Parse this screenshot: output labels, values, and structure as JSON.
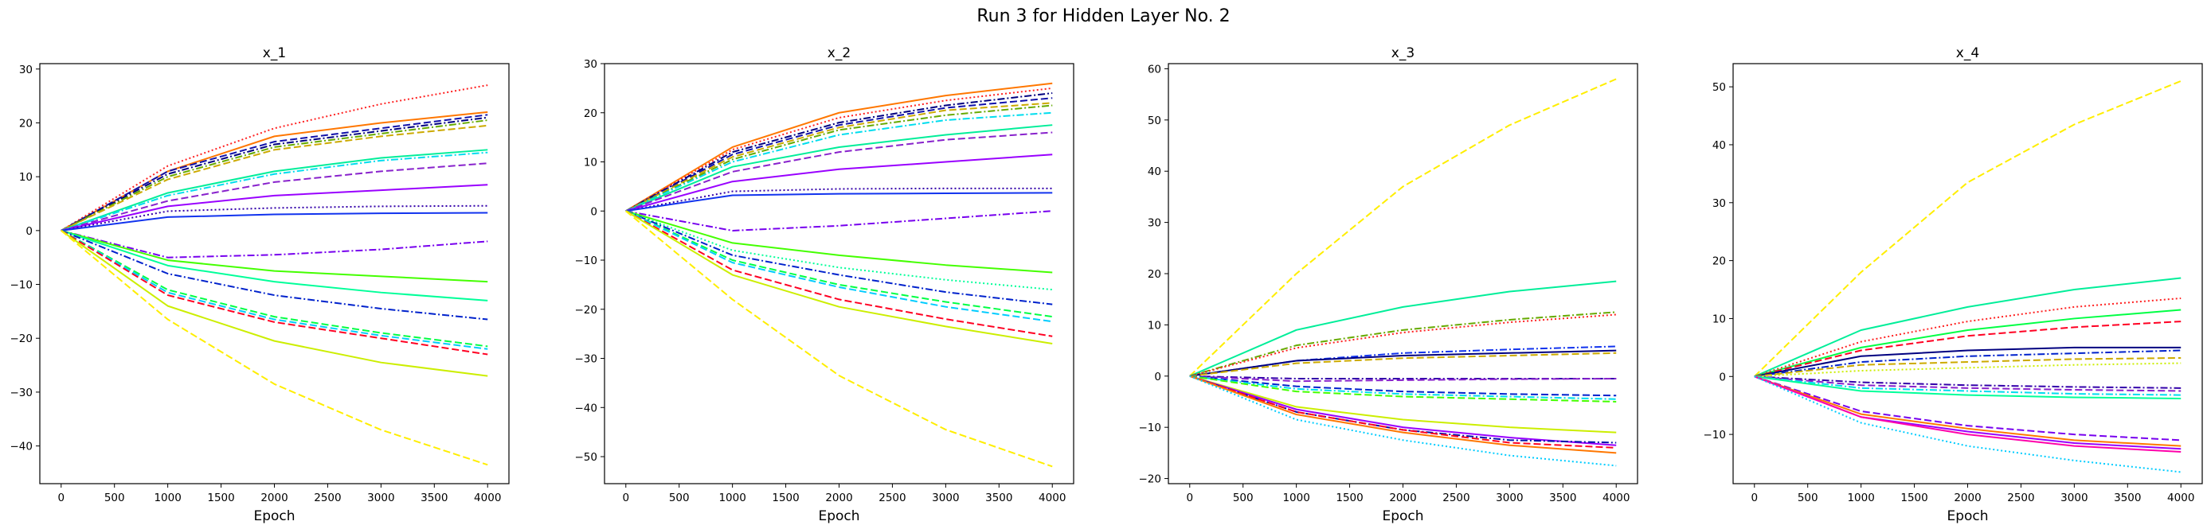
{
  "figure": {
    "title": "Run 3 for Hidden Layer No. 2"
  },
  "chart_data": [
    {
      "type": "line",
      "title": "x_1",
      "xlabel": "Epoch",
      "ylabel": "",
      "x": [
        0,
        1000,
        2000,
        3000,
        4000
      ],
      "xlim": [
        -200,
        4200
      ],
      "ylim": [
        -47,
        31
      ],
      "xticks": [
        0,
        500,
        1000,
        1500,
        2000,
        2500,
        3000,
        3500,
        4000
      ],
      "yticks": [
        -40,
        -30,
        -20,
        -10,
        0,
        10,
        20,
        30
      ],
      "series": [
        {
          "color": "#ff2222",
          "dash": "dotted",
          "values": [
            0,
            12,
            19,
            23.5,
            27
          ]
        },
        {
          "color": "#ff7700",
          "dash": "solid",
          "values": [
            0,
            11,
            17.5,
            20,
            22
          ]
        },
        {
          "color": "#1111aa",
          "dash": "dashed",
          "values": [
            0,
            11,
            16.5,
            19,
            21.5
          ]
        },
        {
          "color": "#000080",
          "dash": "dashdot",
          "values": [
            0,
            10.5,
            16,
            18.5,
            21
          ]
        },
        {
          "color": "#66aa00",
          "dash": "dashdot",
          "values": [
            0,
            10,
            15.5,
            18,
            20.5
          ]
        },
        {
          "color": "#ccaa00",
          "dash": "dashed",
          "values": [
            0,
            9.5,
            15,
            17.5,
            19.5
          ]
        },
        {
          "color": "#00ee99",
          "dash": "solid",
          "values": [
            0,
            7,
            11,
            13.5,
            15
          ]
        },
        {
          "color": "#00ddee",
          "dash": "dashdot",
          "values": [
            0,
            6.5,
            10.5,
            13,
            14.5
          ]
        },
        {
          "color": "#8822cc",
          "dash": "dashed",
          "values": [
            0,
            5.5,
            9,
            11,
            12.5
          ]
        },
        {
          "color": "#9900ff",
          "dash": "solid",
          "values": [
            0,
            4.5,
            6.5,
            7.5,
            8.5
          ]
        },
        {
          "color": "#3300aa",
          "dash": "dotted",
          "values": [
            0,
            3.6,
            4.2,
            4.5,
            4.6
          ]
        },
        {
          "color": "#1133ee",
          "dash": "solid",
          "values": [
            0,
            2.5,
            3,
            3.2,
            3.3
          ]
        },
        {
          "color": "#7700ee",
          "dash": "dashdot",
          "values": [
            0,
            -5,
            -4.5,
            -3.5,
            -2
          ]
        },
        {
          "color": "#44ff00",
          "dash": "solid",
          "values": [
            0,
            -5.5,
            -7.5,
            -8.5,
            -9.5
          ]
        },
        {
          "color": "#00ff99",
          "dash": "solid",
          "values": [
            0,
            -6.5,
            -9.5,
            -11.5,
            -13
          ]
        },
        {
          "color": "#0022cc",
          "dash": "dashdot",
          "values": [
            0,
            -8,
            -12,
            -14.5,
            -16.5
          ]
        },
        {
          "color": "#00ff44",
          "dash": "dashed",
          "values": [
            0,
            -11,
            -16,
            -19,
            -21.5
          ]
        },
        {
          "color": "#00ccff",
          "dash": "dashed",
          "values": [
            0,
            -11.5,
            -16.5,
            -19.5,
            -22
          ]
        },
        {
          "color": "#ff0022",
          "dash": "dashed",
          "values": [
            0,
            -12,
            -17,
            -20,
            -23
          ]
        },
        {
          "color": "#ccee00",
          "dash": "solid",
          "values": [
            0,
            -14,
            -20.5,
            -24.5,
            -27
          ]
        },
        {
          "color": "#ffee00",
          "dash": "dashed",
          "values": [
            0,
            -16.5,
            -28.5,
            -37,
            -43.5
          ]
        }
      ]
    },
    {
      "type": "line",
      "title": "x_2",
      "xlabel": "Epoch",
      "ylabel": "",
      "x": [
        0,
        1000,
        2000,
        3000,
        4000
      ],
      "xlim": [
        -200,
        4200
      ],
      "ylim": [
        -55.5,
        30
      ],
      "xticks": [
        0,
        500,
        1000,
        1500,
        2000,
        2500,
        3000,
        3500,
        4000
      ],
      "yticks": [
        -50,
        -40,
        -30,
        -20,
        -10,
        0,
        10,
        20,
        30
      ],
      "series": [
        {
          "color": "#ff7700",
          "dash": "solid",
          "values": [
            0,
            13,
            20,
            23.5,
            26
          ]
        },
        {
          "color": "#ff2222",
          "dash": "dotted",
          "values": [
            0,
            12.5,
            19,
            22.5,
            25
          ]
        },
        {
          "color": "#000080",
          "dash": "dashdot",
          "values": [
            0,
            12,
            18,
            21.5,
            24
          ]
        },
        {
          "color": "#1111aa",
          "dash": "dashed",
          "values": [
            0,
            11.5,
            17.5,
            21,
            23
          ]
        },
        {
          "color": "#ccaa00",
          "dash": "dashed",
          "values": [
            0,
            11,
            17,
            20.5,
            22
          ]
        },
        {
          "color": "#66aa00",
          "dash": "dashdot",
          "values": [
            0,
            10.5,
            16.5,
            19.5,
            21.5
          ]
        },
        {
          "color": "#00ddee",
          "dash": "dashdot",
          "values": [
            0,
            10,
            15.5,
            18.5,
            20
          ]
        },
        {
          "color": "#00ee99",
          "dash": "solid",
          "values": [
            0,
            9,
            13,
            15.5,
            17.5
          ]
        },
        {
          "color": "#8822cc",
          "dash": "dashed",
          "values": [
            0,
            8,
            12,
            14.5,
            16
          ]
        },
        {
          "color": "#9900ff",
          "dash": "solid",
          "values": [
            0,
            6,
            8.5,
            10,
            11.5
          ]
        },
        {
          "color": "#3300aa",
          "dash": "dotted",
          "values": [
            0,
            4,
            4.5,
            4.6,
            4.6
          ]
        },
        {
          "color": "#1133ee",
          "dash": "solid",
          "values": [
            0,
            3.2,
            3.5,
            3.6,
            3.7
          ]
        },
        {
          "color": "#7700ee",
          "dash": "dashdot",
          "values": [
            0,
            -4,
            -3,
            -1.5,
            0
          ]
        },
        {
          "color": "#44ff00",
          "dash": "solid",
          "values": [
            0,
            -6.5,
            -9,
            -11,
            -12.5
          ]
        },
        {
          "color": "#00ff99",
          "dash": "dotted",
          "values": [
            0,
            -8,
            -11.5,
            -14,
            -16
          ]
        },
        {
          "color": "#0022cc",
          "dash": "dashdot",
          "values": [
            0,
            -9,
            -13,
            -16.5,
            -19
          ]
        },
        {
          "color": "#00ff44",
          "dash": "dashed",
          "values": [
            0,
            -10,
            -15,
            -18.5,
            -21.5
          ]
        },
        {
          "color": "#00ccff",
          "dash": "dashed",
          "values": [
            0,
            -10.5,
            -15.5,
            -19.5,
            -22.5
          ]
        },
        {
          "color": "#ff0022",
          "dash": "dashed",
          "values": [
            0,
            -12,
            -18,
            -22,
            -25.5
          ]
        },
        {
          "color": "#ccee00",
          "dash": "solid",
          "values": [
            0,
            -13,
            -19.5,
            -23.5,
            -27
          ]
        },
        {
          "color": "#ffee00",
          "dash": "dashed",
          "values": [
            0,
            -18,
            -33.5,
            -44.5,
            -52
          ]
        }
      ]
    },
    {
      "type": "line",
      "title": "x_3",
      "xlabel": "Epoch",
      "ylabel": "",
      "x": [
        0,
        1000,
        2000,
        3000,
        4000
      ],
      "xlim": [
        -200,
        4200
      ],
      "ylim": [
        -21,
        61
      ],
      "xticks": [
        0,
        500,
        1000,
        1500,
        2000,
        2500,
        3000,
        3500,
        4000
      ],
      "yticks": [
        -20,
        -10,
        0,
        10,
        20,
        30,
        40,
        50,
        60
      ],
      "series": [
        {
          "color": "#ffee00",
          "dash": "dashed",
          "values": [
            0,
            20,
            37,
            49,
            58
          ]
        },
        {
          "color": "#00ee99",
          "dash": "solid",
          "values": [
            0,
            9,
            13.5,
            16.5,
            18.5
          ]
        },
        {
          "color": "#66aa00",
          "dash": "dashdot",
          "values": [
            0,
            6,
            9,
            11,
            12.5
          ]
        },
        {
          "color": "#ff2222",
          "dash": "dotted",
          "values": [
            0,
            5.5,
            8.5,
            10.5,
            12
          ]
        },
        {
          "color": "#1133ee",
          "dash": "dashdot",
          "values": [
            0,
            3,
            4.5,
            5.2,
            5.8
          ]
        },
        {
          "color": "#000080",
          "dash": "solid",
          "values": [
            0,
            3,
            4,
            4.5,
            5
          ]
        },
        {
          "color": "#ccaa00",
          "dash": "dashed",
          "values": [
            0,
            2.5,
            3.5,
            4,
            4.5
          ]
        },
        {
          "color": "#3300aa",
          "dash": "dashdot",
          "values": [
            0,
            -0.5,
            -0.5,
            -0.5,
            -0.5
          ]
        },
        {
          "color": "#8822cc",
          "dash": "dashed",
          "values": [
            0,
            -1,
            -0.8,
            -0.6,
            -0.5
          ]
        },
        {
          "color": "#0022cc",
          "dash": "dashed",
          "values": [
            0,
            -2,
            -3,
            -3.5,
            -3.8
          ]
        },
        {
          "color": "#00ddee",
          "dash": "dashdot",
          "values": [
            0,
            -2.5,
            -3.5,
            -4,
            -4.5
          ]
        },
        {
          "color": "#44ff00",
          "dash": "dashed",
          "values": [
            0,
            -3,
            -4,
            -4.5,
            -5
          ]
        },
        {
          "color": "#ccee00",
          "dash": "solid",
          "values": [
            0,
            -6,
            -8.5,
            -10,
            -11
          ]
        },
        {
          "color": "#9900ff",
          "dash": "solid",
          "values": [
            0,
            -6.5,
            -10,
            -12,
            -13.5
          ]
        },
        {
          "color": "#0011aa",
          "dash": "dashdot",
          "values": [
            0,
            -7,
            -10.5,
            -12.5,
            -13
          ]
        },
        {
          "color": "#ff0022",
          "dash": "dashed",
          "values": [
            0,
            -7,
            -10.5,
            -13,
            -14
          ]
        },
        {
          "color": "#ff7700",
          "dash": "solid",
          "values": [
            0,
            -7.5,
            -11,
            -13.5,
            -15
          ]
        },
        {
          "color": "#00ccff",
          "dash": "dotted",
          "values": [
            0,
            -8.5,
            -12.5,
            -15.5,
            -17.5
          ]
        }
      ]
    },
    {
      "type": "line",
      "title": "x_4",
      "xlabel": "Epoch",
      "ylabel": "",
      "x": [
        0,
        1000,
        2000,
        3000,
        4000
      ],
      "xlim": [
        -200,
        4200
      ],
      "ylim": [
        -18.5,
        54
      ],
      "xticks": [
        0,
        500,
        1000,
        1500,
        2000,
        2500,
        3000,
        3500,
        4000
      ],
      "yticks": [
        -10,
        0,
        10,
        20,
        30,
        40,
        50
      ],
      "series": [
        {
          "color": "#ffee00",
          "dash": "dashed",
          "values": [
            0,
            18,
            33.5,
            43.5,
            51
          ]
        },
        {
          "color": "#00ee99",
          "dash": "solid",
          "values": [
            0,
            8,
            12,
            15,
            17
          ]
        },
        {
          "color": "#ff2222",
          "dash": "dotted",
          "values": [
            0,
            6,
            9.5,
            12,
            13.5
          ]
        },
        {
          "color": "#00ff44",
          "dash": "solid",
          "values": [
            0,
            5,
            8,
            10,
            11.5
          ]
        },
        {
          "color": "#ff0022",
          "dash": "dashed",
          "values": [
            0,
            4.5,
            7,
            8.5,
            9.5
          ]
        },
        {
          "color": "#000080",
          "dash": "solid",
          "values": [
            0,
            3.5,
            4.5,
            5,
            5
          ]
        },
        {
          "color": "#0022cc",
          "dash": "dashdot",
          "values": [
            0,
            2.5,
            3.5,
            4,
            4.5
          ]
        },
        {
          "color": "#ccaa00",
          "dash": "dashed",
          "values": [
            0,
            2,
            2.5,
            3,
            3.2
          ]
        },
        {
          "color": "#ccee00",
          "dash": "dotted",
          "values": [
            0,
            1,
            1.5,
            2,
            2.3
          ]
        },
        {
          "color": "#3300aa",
          "dash": "dashdot",
          "values": [
            0,
            -1,
            -1.5,
            -1.8,
            -2
          ]
        },
        {
          "color": "#8822cc",
          "dash": "dashed",
          "values": [
            0,
            -1.5,
            -2,
            -2.3,
            -2.5
          ]
        },
        {
          "color": "#00ddee",
          "dash": "dashdot",
          "values": [
            0,
            -2,
            -2.5,
            -3,
            -3.2
          ]
        },
        {
          "color": "#00ff99",
          "dash": "solid",
          "values": [
            0,
            -2.5,
            -3.2,
            -3.6,
            -3.8
          ]
        },
        {
          "color": "#7700ee",
          "dash": "dashed",
          "values": [
            0,
            -6,
            -8.5,
            -10,
            -11
          ]
        },
        {
          "color": "#ff7700",
          "dash": "solid",
          "values": [
            0,
            -6.5,
            -9,
            -11,
            -12
          ]
        },
        {
          "color": "#9900ff",
          "dash": "solid",
          "values": [
            0,
            -7,
            -9.5,
            -11.5,
            -12.5
          ]
        },
        {
          "color": "#ff00aa",
          "dash": "solid",
          "values": [
            0,
            -7,
            -10,
            -12,
            -13
          ]
        },
        {
          "color": "#00ccff",
          "dash": "dotted",
          "values": [
            0,
            -8,
            -12,
            -14.5,
            -16.5
          ]
        }
      ]
    }
  ]
}
